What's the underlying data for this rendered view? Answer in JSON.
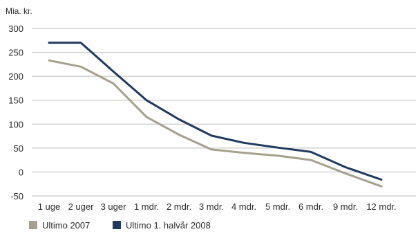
{
  "chart_data": {
    "type": "line",
    "title": "",
    "ylabel": "Mia. kr.",
    "xlabel": "",
    "ylim": [
      -50,
      300
    ],
    "yticks": [
      300,
      250,
      200,
      150,
      100,
      50,
      0,
      -50
    ],
    "categories": [
      "1 uge",
      "2 uger",
      "3 uger",
      "1 mdr.",
      "2 mdr.",
      "3 mdr.",
      "4 mdr.",
      "5 mdr.",
      "6 mdr.",
      "9 mdr.",
      "12 mdr."
    ],
    "grid": true,
    "legend_position": "bottom-left",
    "series": [
      {
        "name": "Ultimo 2007",
        "color": "#a5a08d",
        "values": [
          233,
          220,
          185,
          115,
          78,
          47,
          40,
          34,
          25,
          -3,
          -30
        ]
      },
      {
        "name": "Ultimo 1. halvår 2008",
        "color": "#1e3a5f",
        "values": [
          270,
          270,
          210,
          150,
          110,
          76,
          61,
          51,
          42,
          10,
          -16
        ]
      }
    ]
  }
}
